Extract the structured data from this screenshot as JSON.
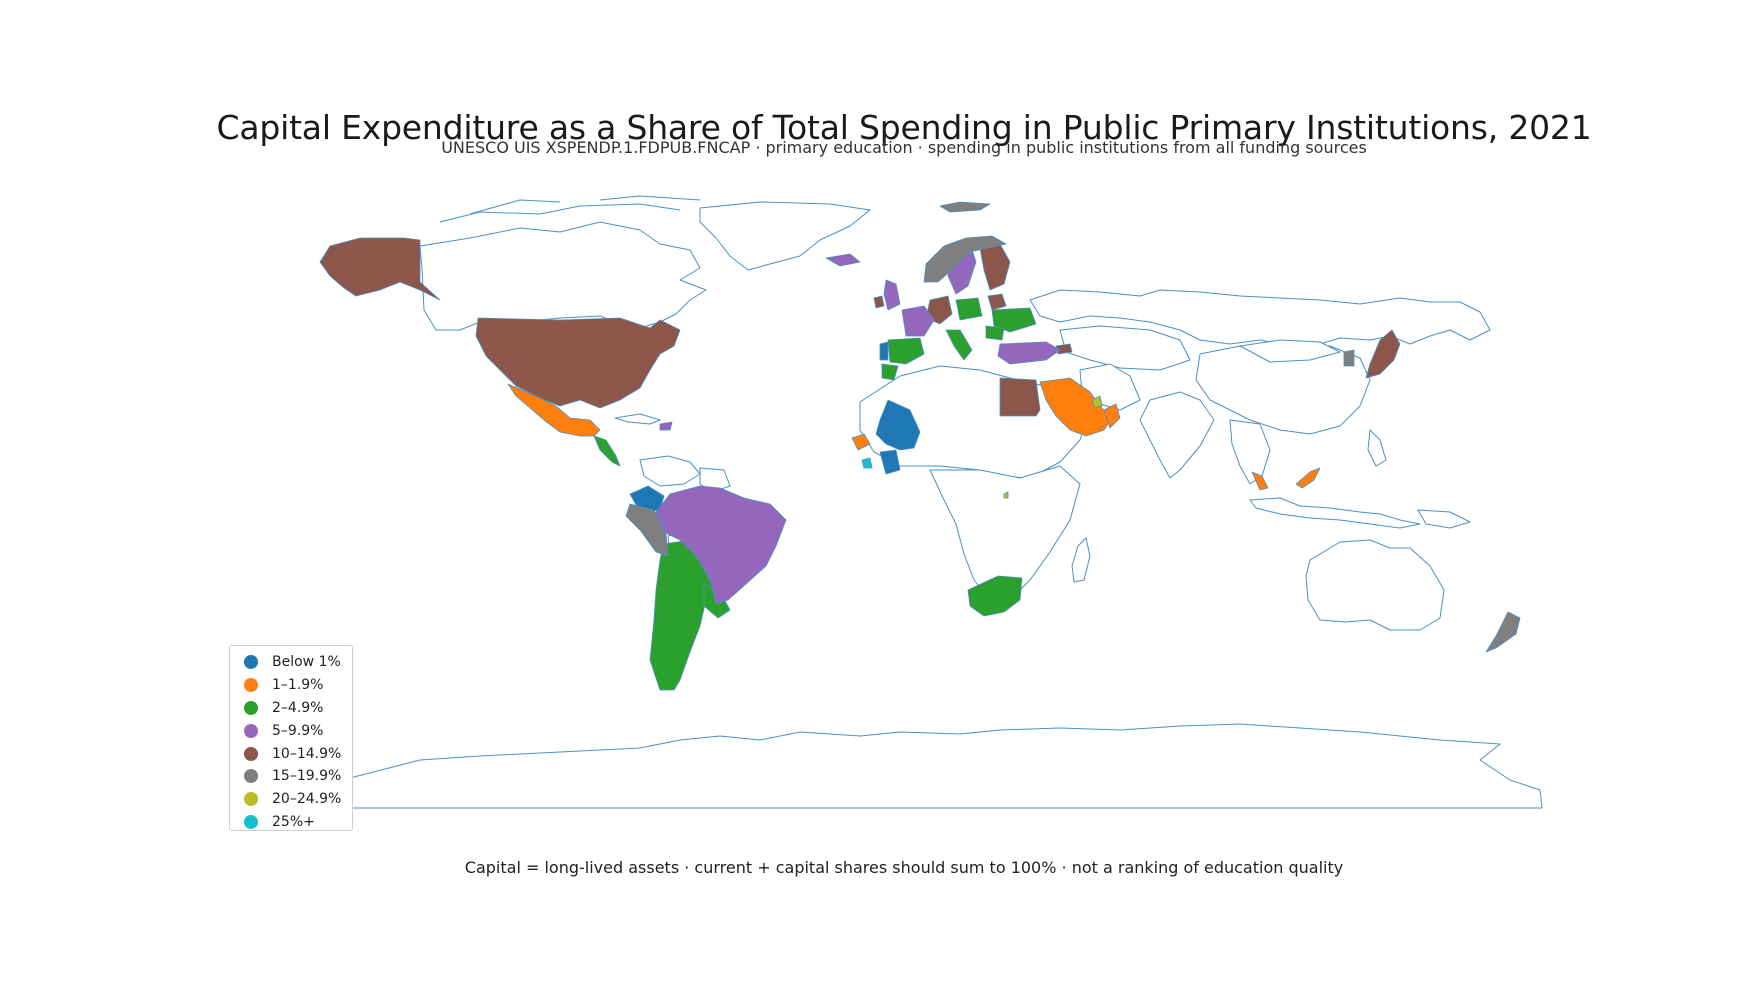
{
  "title": "Capital Expenditure as a Share of Total Spending in Public Primary Institutions, 2021",
  "subtitle": "UNESCO UIS XSPENDP.1.FDPUB.FNCAP · primary education · spending in public institutions from all funding sources",
  "footnote": "Capital = long-lived assets · current + capital shares should sum to 100% · not a ranking of education quality",
  "map": {
    "projection": "equirectangular",
    "outline_color": "#4a90c4",
    "no_data_fill": "#ffffff",
    "legend_placement": "lower-left"
  },
  "legend": [
    {
      "label": "Below 1%",
      "color": "#1f77b4"
    },
    {
      "label": "1–1.9%",
      "color": "#ff7f0e"
    },
    {
      "label": "2–4.9%",
      "color": "#2ca02c"
    },
    {
      "label": "5–9.9%",
      "color": "#9467bd"
    },
    {
      "label": "10–14.9%",
      "color": "#8c564b"
    },
    {
      "label": "15–19.9%",
      "color": "#7f7f7f"
    },
    {
      "label": "20–24.9%",
      "color": "#bcbd22"
    },
    {
      "label": "25%+",
      "color": "#17becf"
    }
  ],
  "regions": {
    "below_1": [
      "Mali",
      "Colombia",
      "Côte d'Ivoire",
      "Portugal"
    ],
    "1_1.9": [
      "Mexico",
      "Saudi Arabia",
      "Malaysia",
      "Guinea",
      "Oman"
    ],
    "2_4.9": [
      "Argentina",
      "Paraguay",
      "Uruguay",
      "Chile",
      "Spain",
      "Italy",
      "Poland",
      "Ukraine",
      "Romania",
      "South Africa",
      "Guatemala",
      "Costa Rica",
      "Panama",
      "Morocco"
    ],
    "5_9.9": [
      "Brazil",
      "Sweden",
      "Türkiye",
      "Iceland",
      "United Kingdom",
      "France",
      "Lithuania",
      "Dominican Republic"
    ],
    "10_14.9": [
      "United States",
      "Egypt",
      "Japan",
      "Finland",
      "Germany",
      "Ireland",
      "Belarus",
      "Georgia"
    ],
    "15_19.9": [
      "Peru",
      "Ecuador",
      "Norway",
      "New Zealand",
      "Republic of Korea",
      "Svalbard"
    ],
    "20_24.9": [
      "United Arab Emirates",
      "Rwanda"
    ],
    "25_plus": [
      "Sierra Leone"
    ]
  }
}
